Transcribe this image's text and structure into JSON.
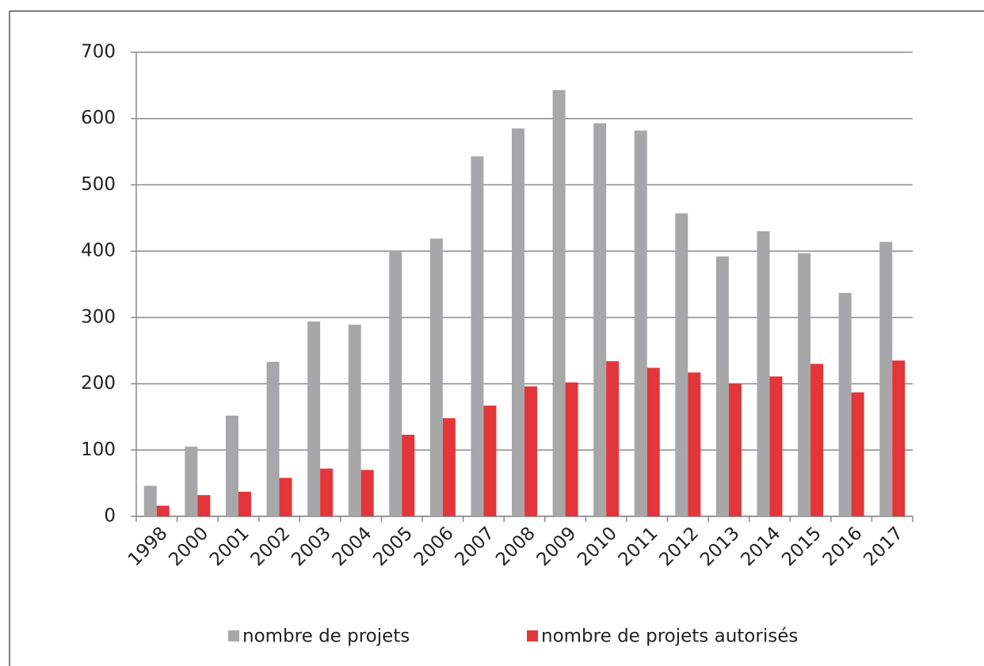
{
  "chart_data": {
    "type": "bar",
    "categories": [
      "1998",
      "2000",
      "2001",
      "2002",
      "2003",
      "2004",
      "2005",
      "2006",
      "2007",
      "2008",
      "2009",
      "2010",
      "2011",
      "2012",
      "2013",
      "2014",
      "2015",
      "2016",
      "2017"
    ],
    "series": [
      {
        "name": "nombre de projets",
        "color": "#a7a7a9",
        "values": [
          46,
          105,
          152,
          233,
          294,
          289,
          400,
          419,
          543,
          585,
          643,
          593,
          582,
          457,
          392,
          430,
          397,
          337,
          414
        ]
      },
      {
        "name": "nombre de projets autorisés",
        "color": "#e2363a",
        "values": [
          16,
          32,
          37,
          58,
          72,
          70,
          123,
          148,
          167,
          196,
          202,
          234,
          224,
          217,
          200,
          211,
          230,
          187,
          235
        ]
      }
    ],
    "ylim": [
      0,
      700
    ],
    "yticks": [
      0,
      100,
      200,
      300,
      400,
      500,
      600,
      700
    ],
    "grid": true,
    "legend": "bottom"
  }
}
